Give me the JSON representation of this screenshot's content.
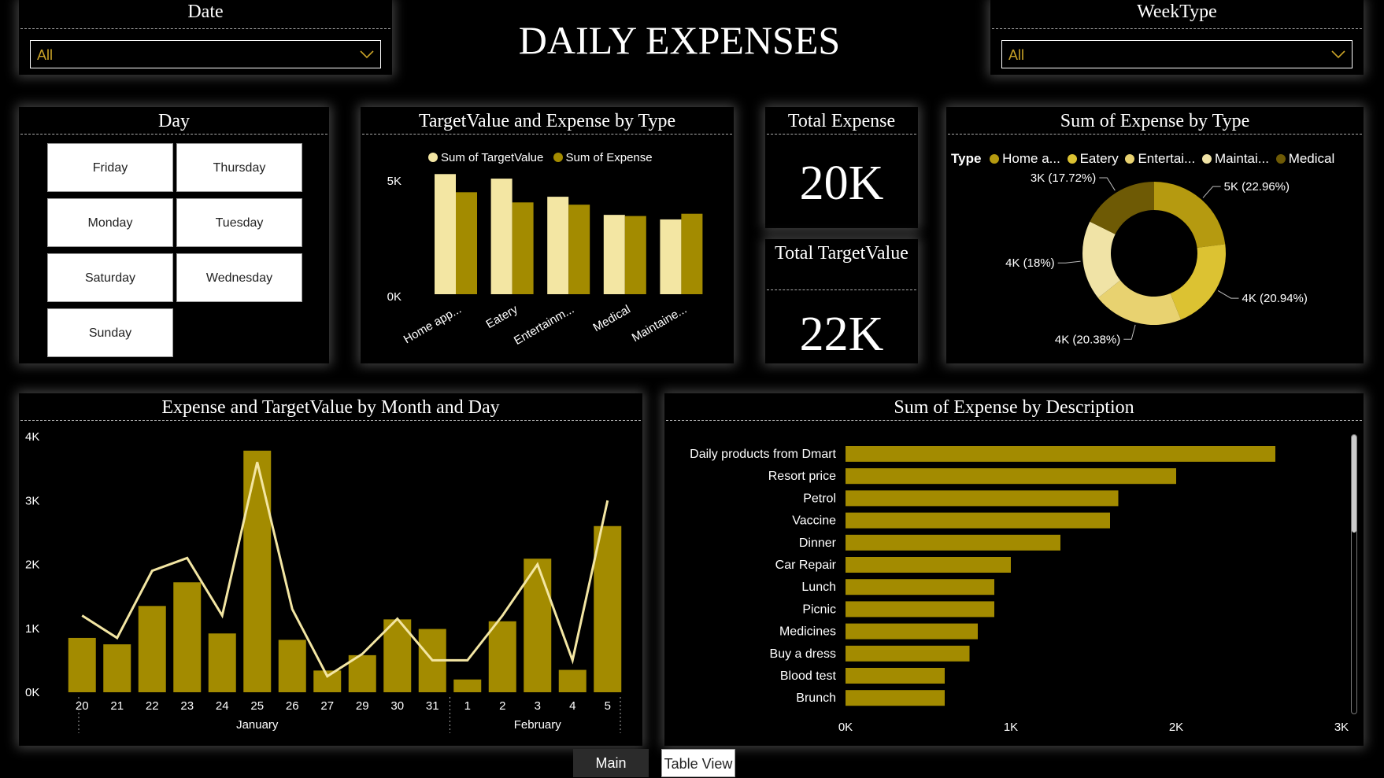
{
  "title": "DAILY EXPENSES",
  "colors": {
    "gold": "#a38b00",
    "light": "#f3e6a3",
    "donut": [
      "#b59a10",
      "#dcc232",
      "#e8d270",
      "#f0e3a6",
      "#6e5a05"
    ]
  },
  "slicers": {
    "date": {
      "title": "Date",
      "value": "All"
    },
    "weektype": {
      "title": "WeekType",
      "value": "All"
    }
  },
  "day": {
    "title": "Day",
    "buttons": [
      "Friday",
      "Thursday",
      "Monday",
      "Tuesday",
      "Saturday",
      "Wednesday",
      "Sunday"
    ]
  },
  "kpis": {
    "total_expense": {
      "label": "Total Expense",
      "value": "20K"
    },
    "total_target": {
      "label": "Total TargetValue",
      "value": "22K"
    }
  },
  "tabs": [
    "Main",
    "Table View"
  ],
  "chart_data": [
    {
      "id": "type_bar",
      "type": "bar",
      "title": "TargetValue and Expense by Type",
      "categories": [
        "Home app...",
        "Eatery",
        "Entertainm...",
        "Medical",
        "Maintaine..."
      ],
      "series": [
        {
          "name": "Sum of TargetValue",
          "values": [
            5300,
            5100,
            4300,
            3500,
            3300
          ]
        },
        {
          "name": "Sum of Expense",
          "values": [
            4500,
            4050,
            3950,
            3450,
            3550
          ]
        }
      ],
      "ylim": [
        0,
        6000
      ],
      "yticks": [
        "5K",
        "0K"
      ],
      "legend": "top"
    },
    {
      "id": "type_donut",
      "type": "pie",
      "title": "Sum of Expense by Type",
      "legend_title": "Type",
      "legend": [
        "Home a...",
        "Eatery",
        "Entertai...",
        "Maintai...",
        "Medical"
      ],
      "values": [
        22.96,
        20.94,
        20.38,
        18.0,
        17.72
      ],
      "labels": [
        "5K (22.96%)",
        "4K (20.94%)",
        "4K (20.38%)",
        "4K (18%)",
        "3K (17.72%)"
      ]
    },
    {
      "id": "month_day",
      "type": "bar",
      "title": "Expense and TargetValue by Month and Day",
      "categories": [
        "20",
        "21",
        "22",
        "23",
        "24",
        "25",
        "26",
        "27",
        "29",
        "30",
        "31",
        "1",
        "2",
        "3",
        "4",
        "5"
      ],
      "months": [
        {
          "name": "January",
          "count": 11
        },
        {
          "name": "February",
          "count": 5
        }
      ],
      "series": [
        {
          "name": "Expense",
          "values": [
            850,
            750,
            1350,
            1720,
            920,
            3780,
            820,
            340,
            580,
            1140,
            990,
            200,
            1110,
            2090,
            350,
            2600
          ]
        },
        {
          "name": "TargetValue",
          "type": "line",
          "values": [
            1200,
            850,
            1900,
            2100,
            1200,
            3600,
            1300,
            250,
            600,
            1150,
            500,
            500,
            1200,
            2000,
            500,
            3000
          ]
        }
      ],
      "ylim": [
        0,
        4000
      ],
      "yticks": [
        "0K",
        "1K",
        "2K",
        "3K",
        "4K"
      ]
    },
    {
      "id": "description",
      "type": "bar",
      "orientation": "horizontal",
      "title": "Sum of Expense by Description",
      "categories": [
        "Daily products from Dmart",
        "Resort price",
        "Petrol",
        "Vaccine",
        "Dinner",
        "Car Repair",
        "Lunch",
        "Picnic",
        "Medicines",
        "Buy a dress",
        "Blood test",
        "Brunch"
      ],
      "values": [
        2600,
        2000,
        1650,
        1600,
        1300,
        1000,
        900,
        900,
        800,
        750,
        600,
        600
      ],
      "xlim": [
        0,
        3000
      ],
      "xticks": [
        "0K",
        "1K",
        "2K",
        "3K"
      ]
    }
  ]
}
